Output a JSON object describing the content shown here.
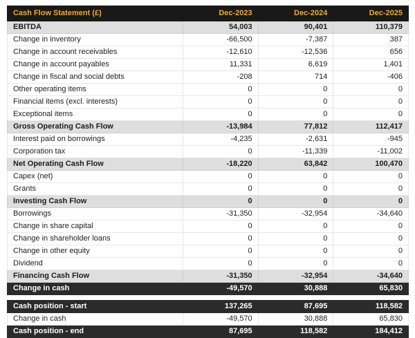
{
  "colors": {
    "header_bg": "#191919",
    "header_text": "#f8a91b",
    "section_bg": "#dedede",
    "dark_bg": "#2b2b2b",
    "dark_text": "#ffffff"
  },
  "table": {
    "title": "Cash Flow Statement (£)",
    "columns": [
      "Dec-2023",
      "Dec-2024",
      "Dec-2025"
    ],
    "rows": [
      {
        "label": "EBITDA",
        "values": [
          "54,003",
          "90,401",
          "110,379"
        ],
        "style": "section"
      },
      {
        "label": "Change in inventory",
        "values": [
          "-66,500",
          "-7,387",
          "387"
        ],
        "style": "normal"
      },
      {
        "label": "Change in account receivables",
        "values": [
          "-12,610",
          "-12,536",
          "656"
        ],
        "style": "normal"
      },
      {
        "label": "Change in account payables",
        "values": [
          "11,331",
          "6,619",
          "1,401"
        ],
        "style": "normal"
      },
      {
        "label": "Change in fiscal and social debts",
        "values": [
          "-208",
          "714",
          "-406"
        ],
        "style": "normal"
      },
      {
        "label": "Other operating items",
        "values": [
          "0",
          "0",
          "0"
        ],
        "style": "normal"
      },
      {
        "label": "Financial items (excl. interests)",
        "values": [
          "0",
          "0",
          "0"
        ],
        "style": "normal"
      },
      {
        "label": "Exceptional items",
        "values": [
          "0",
          "0",
          "0"
        ],
        "style": "normal"
      },
      {
        "label": "Gross Operating Cash Flow",
        "values": [
          "-13,984",
          "77,812",
          "112,417"
        ],
        "style": "section"
      },
      {
        "label": "Interest paid on borrowings",
        "values": [
          "-4,235",
          "-2,631",
          "-945"
        ],
        "style": "normal"
      },
      {
        "label": "Corporation tax",
        "values": [
          "0",
          "-11,339",
          "-11,002"
        ],
        "style": "normal"
      },
      {
        "label": "Net Operating Cash Flow",
        "values": [
          "-18,220",
          "63,842",
          "100,470"
        ],
        "style": "section"
      },
      {
        "label": "Capex (net)",
        "values": [
          "0",
          "0",
          "0"
        ],
        "style": "normal"
      },
      {
        "label": "Grants",
        "values": [
          "0",
          "0",
          "0"
        ],
        "style": "normal"
      },
      {
        "label": "Investing Cash Flow",
        "values": [
          "0",
          "0",
          "0"
        ],
        "style": "section"
      },
      {
        "label": "Borrowings",
        "values": [
          "-31,350",
          "-32,954",
          "-34,640"
        ],
        "style": "normal"
      },
      {
        "label": "Change in share capital",
        "values": [
          "0",
          "0",
          "0"
        ],
        "style": "normal"
      },
      {
        "label": "Change in shareholder loans",
        "values": [
          "0",
          "0",
          "0"
        ],
        "style": "normal"
      },
      {
        "label": "Change in other equity",
        "values": [
          "0",
          "0",
          "0"
        ],
        "style": "normal"
      },
      {
        "label": "Dividend",
        "values": [
          "0",
          "0",
          "0"
        ],
        "style": "normal"
      },
      {
        "label": "Financing Cash Flow",
        "values": [
          "-31,350",
          "-32,954",
          "-34,640"
        ],
        "style": "section"
      },
      {
        "label": "Change in cash",
        "values": [
          "-49,570",
          "30,888",
          "65,830"
        ],
        "style": "dark"
      }
    ]
  },
  "summary": {
    "rows": [
      {
        "label": "Cash position - start",
        "values": [
          "137,265",
          "87,695",
          "118,582"
        ],
        "style": "dark"
      },
      {
        "label": "Change in cash",
        "values": [
          "-49,570",
          "30,888",
          "65,830"
        ],
        "style": "normal"
      },
      {
        "label": "Cash position - end",
        "values": [
          "87,695",
          "118,582",
          "184,412"
        ],
        "style": "dark"
      }
    ]
  }
}
